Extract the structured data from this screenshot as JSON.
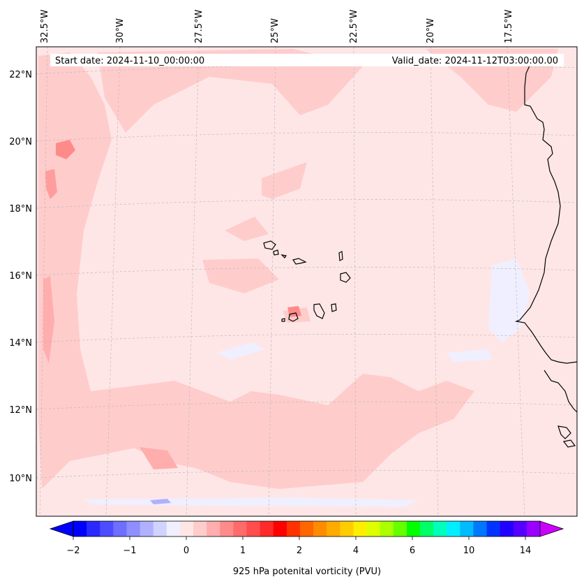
{
  "map": {
    "start_date": "Start date: 2024-11-10_00:00:00",
    "valid_date": "Valid_date: 2024-11-12T03:00:00.00",
    "lon_labels": [
      "32.5°W",
      "30°W",
      "27.5°W",
      "25°W",
      "22.5°W",
      "20°W",
      "17.5°W"
    ],
    "lat_labels": [
      "22°N",
      "20°N",
      "18°N",
      "16°N",
      "14°N",
      "12°N",
      "10°N"
    ],
    "background_color": "#ffe6e6",
    "coast_color": "#000000",
    "grid": true
  },
  "colorbar": {
    "label": "925 hPa potenital vorticity (PVU)",
    "ticks": [
      "−2",
      "−1",
      "0",
      "1",
      "2",
      "4",
      "6",
      "10",
      "14"
    ],
    "colors": [
      "#0000ff",
      "#2a2aff",
      "#4d4dff",
      "#6e6eff",
      "#8e8eff",
      "#b0b0ff",
      "#d2d2ff",
      "#efefff",
      "#ffe6e6",
      "#ffcccc",
      "#ffadad",
      "#ff8a8a",
      "#ff6b6b",
      "#ff4d4d",
      "#ff2b2b",
      "#ff0000",
      "#ff3300",
      "#ff6600",
      "#ff8c00",
      "#ffaa00",
      "#ffcc00",
      "#ffee00",
      "#ddff00",
      "#aaff00",
      "#66ff00",
      "#00ff00",
      "#00ff66",
      "#00ffbb",
      "#00eeff",
      "#00bbff",
      "#0077ff",
      "#0033ff",
      "#2200ff",
      "#5500ff",
      "#9900ff"
    ],
    "under_color": "#0000ff",
    "over_color": "#cc00ff"
  }
}
